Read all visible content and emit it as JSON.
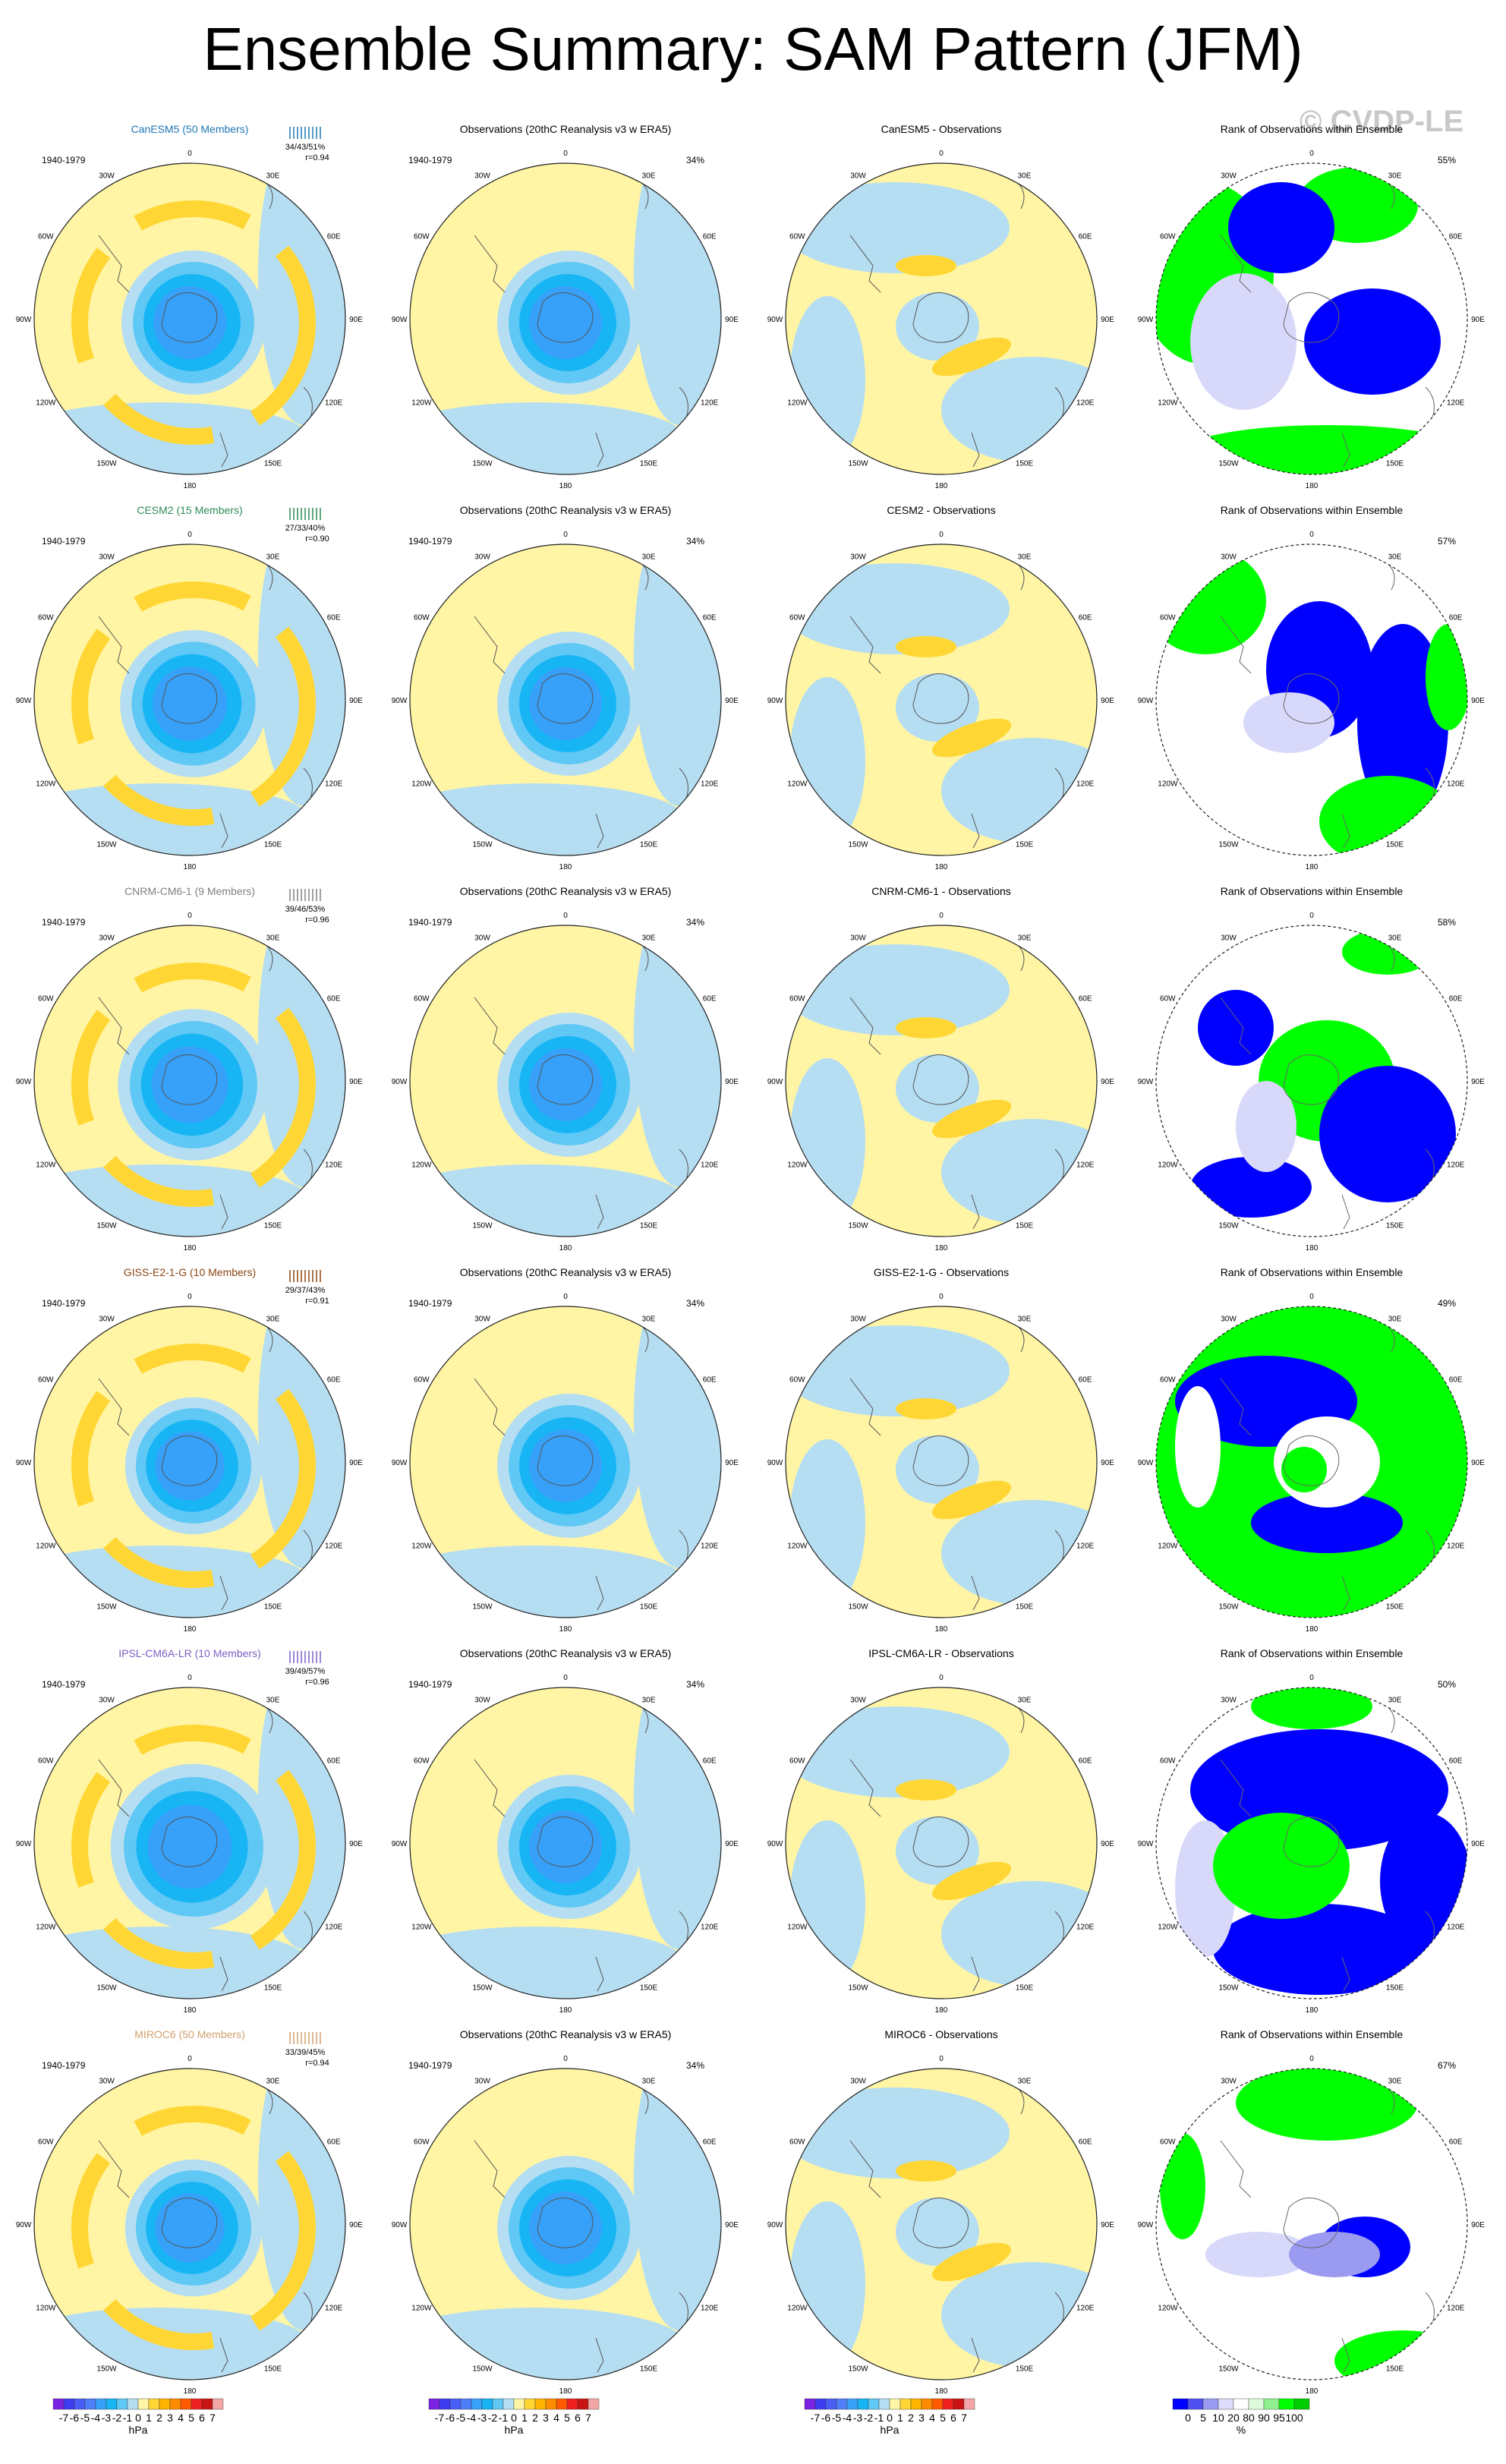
{
  "title": "Ensemble Summary: SAM Pattern (JFM)",
  "watermark": "© CVDP-LE",
  "period": "1940-1979",
  "obs_title": "Observations (20thC Reanalysis v3 w ERA5)",
  "obs_pct": "34%",
  "rank_title": "Rank of Observations within Ensemble",
  "lon_labels": [
    "0",
    "30E",
    "60E",
    "90E",
    "120E",
    "150E",
    "180",
    "150W",
    "120W",
    "90W",
    "60W",
    "30W"
  ],
  "models": [
    {
      "title": "CanESM5 (50 Members)",
      "color": "#1f77b4",
      "stats": "34/43/51%",
      "r": "r=0.94",
      "diff_title": "CanESM5 - Observations",
      "rank_pct": "55%"
    },
    {
      "title": "CESM2 (15 Members)",
      "color": "#2e8b57",
      "stats": "27/33/40%",
      "r": "r=0.90",
      "diff_title": "CESM2 - Observations",
      "rank_pct": "57%"
    },
    {
      "title": "CNRM-CM6-1 (9 Members)",
      "color": "#808080",
      "stats": "39/46/53%",
      "r": "r=0.96",
      "diff_title": "CNRM-CM6-1 - Observations",
      "rank_pct": "58%"
    },
    {
      "title": "GISS-E2-1-G (10 Members)",
      "color": "#8b4513",
      "stats": "29/37/43%",
      "r": "r=0.91",
      "diff_title": "GISS-E2-1-G - Observations",
      "rank_pct": "49%"
    },
    {
      "title": "IPSL-CM6A-LR (10 Members)",
      "color": "#7b5fc4",
      "stats": "39/49/57%",
      "r": "r=0.96",
      "diff_title": "IPSL-CM6A-LR - Observations",
      "rank_pct": "50%"
    },
    {
      "title": "MIROC6 (50 Members)",
      "color": "#d2a06e",
      "stats": "33/39/45%",
      "r": "r=0.94",
      "diff_title": "MIROC6 - Observations",
      "rank_pct": "67%"
    }
  ],
  "colorbar_hpa": {
    "labels": [
      "-7",
      "-6",
      "-5",
      "-4",
      "-3",
      "-2",
      "-1",
      "0",
      "1",
      "2",
      "3",
      "4",
      "5",
      "6",
      "7"
    ],
    "colors": [
      "#7a22e0",
      "#3c3cf0",
      "#4a5ef5",
      "#4f7ff8",
      "#37a0f8",
      "#18b5f5",
      "#5fc8f5",
      "#b6def2",
      "#fff5a5",
      "#ffd633",
      "#ffb400",
      "#ff8c00",
      "#ff5a00",
      "#ee2020",
      "#c81414",
      "#f4a6a6"
    ],
    "unit": "hPa"
  },
  "colorbar_rank": {
    "labels": [
      "0",
      "5",
      "10",
      "20",
      "80",
      "90",
      "95",
      "100"
    ],
    "colors": [
      "#0000ff",
      "#5050f0",
      "#9a9af0",
      "#dcdcfa",
      "#ffffff",
      "#ddfadd",
      "#90f090",
      "#00ff00",
      "#00cc00"
    ],
    "unit": "%"
  },
  "colors": {
    "land_ocean_base": "#fff5a5",
    "light_blue": "#b6def2",
    "rank_low": "#0000ff",
    "rank_high": "#00ff00"
  }
}
